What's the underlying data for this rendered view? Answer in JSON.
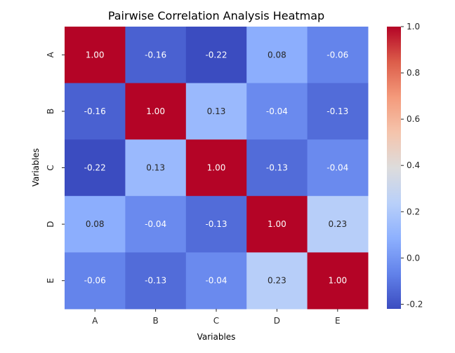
{
  "chart_data": {
    "type": "heatmap",
    "title": "Pairwise Correlation Analysis Heatmap",
    "xlabel": "Variables",
    "ylabel": "Variables",
    "x_categories": [
      "A",
      "B",
      "C",
      "D",
      "E"
    ],
    "y_categories": [
      "A",
      "B",
      "C",
      "D",
      "E"
    ],
    "values": [
      [
        1.0,
        -0.16,
        -0.22,
        0.08,
        -0.06
      ],
      [
        -0.16,
        1.0,
        0.13,
        -0.04,
        -0.13
      ],
      [
        -0.22,
        0.13,
        1.0,
        -0.13,
        -0.04
      ],
      [
        0.08,
        -0.04,
        -0.13,
        1.0,
        0.23
      ],
      [
        -0.06,
        -0.13,
        -0.04,
        0.23,
        1.0
      ]
    ],
    "annotation_format": "0.00",
    "colormap": "coolwarm",
    "color_range": [
      -0.22,
      1.0
    ],
    "colorbar_ticks": [
      "-0.2",
      "0.0",
      "0.2",
      "0.4",
      "0.6",
      "0.8",
      "1.0"
    ],
    "colorbar_placement": "right",
    "grid": false
  }
}
